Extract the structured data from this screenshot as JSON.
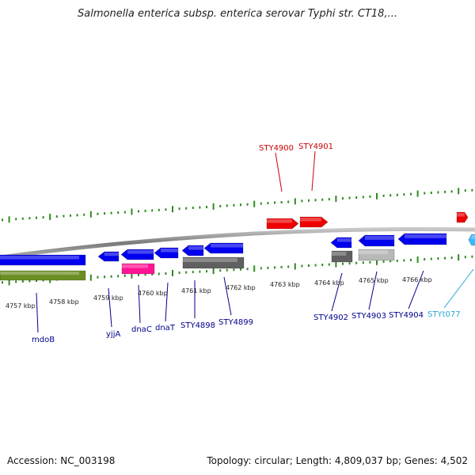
{
  "title": "Salmonella enterica subsp. enterica serovar Typhi str. CT18,...",
  "footer": {
    "accession": "Accession: NC_003198",
    "summary": "Topology: circular; Length: 4,809,037 bp; Genes: 4,502"
  },
  "colors": {
    "backbone": "#8a8a8a",
    "tick": "#2e8b1f",
    "plus_label": "#cc0000",
    "minus_label": "#00008b",
    "rna_label": "#29a9d6"
  },
  "kbp_ticks": [
    {
      "label": "4757 kbp"
    },
    {
      "label": "4758 kbp"
    },
    {
      "label": "4759 kbp"
    },
    {
      "label": "4760 kbp"
    },
    {
      "label": "4761 kbp"
    },
    {
      "label": "4762 kbp"
    },
    {
      "label": "4763 kbp"
    },
    {
      "label": "4764 kbp"
    },
    {
      "label": "4765 kbp"
    },
    {
      "label": "4766 kbp"
    }
  ],
  "plus_labels": [
    {
      "text": "STY4900",
      "color": "#cc0000"
    },
    {
      "text": "STY4901",
      "color": "#cc0000"
    }
  ],
  "minus_labels": [
    {
      "text": "mdoB",
      "color": "#00008b"
    },
    {
      "text": "yjjA",
      "color": "#00008b"
    },
    {
      "text": "dnaC",
      "color": "#00008b"
    },
    {
      "text": "dnaT",
      "color": "#00008b"
    },
    {
      "text": "STY4898",
      "color": "#00008b"
    },
    {
      "text": "STY4899",
      "color": "#00008b"
    },
    {
      "text": "STY4902",
      "color": "#00008b"
    },
    {
      "text": "STY4903",
      "color": "#00008b"
    },
    {
      "text": "STY4904",
      "color": "#00008b"
    },
    {
      "text": "STYt077",
      "color": "#29a9d6"
    }
  ],
  "features": [
    {
      "name": "gene-mdoB",
      "color": "#0000ee",
      "strand": "minus"
    },
    {
      "name": "cds-mdoB",
      "color": "#6b8e23",
      "strand": "minus"
    },
    {
      "name": "gene-yjjA",
      "color": "#0000ee",
      "strand": "minus"
    },
    {
      "name": "gene-dnaC",
      "color": "#0000ee",
      "strand": "minus"
    },
    {
      "name": "cds-dnaC",
      "color": "#ff1493",
      "strand": "minus"
    },
    {
      "name": "gene-dnaT",
      "color": "#0000ee",
      "strand": "minus"
    },
    {
      "name": "gene-STY4898",
      "color": "#0000ee",
      "strand": "minus"
    },
    {
      "name": "gene-STY4899",
      "color": "#0000ee",
      "strand": "minus"
    },
    {
      "name": "cds-STY4898-4899",
      "color": "#606060",
      "strand": "minus"
    },
    {
      "name": "gene-STY4900",
      "color": "#ee0000",
      "strand": "plus"
    },
    {
      "name": "gene-STY4901",
      "color": "#ee0000",
      "strand": "plus"
    },
    {
      "name": "gene-STY4902",
      "color": "#0000ee",
      "strand": "minus"
    },
    {
      "name": "cds-STY4902",
      "color": "#606060",
      "strand": "minus"
    },
    {
      "name": "gene-STY4903",
      "color": "#0000ee",
      "strand": "minus"
    },
    {
      "name": "cds-STY4903",
      "color": "#b8b8b8",
      "strand": "minus"
    },
    {
      "name": "gene-STY4904",
      "color": "#0000ee",
      "strand": "minus"
    },
    {
      "name": "gene-next-plus",
      "color": "#ee0000",
      "strand": "plus"
    },
    {
      "name": "gene-STYt077",
      "color": "#33bbff",
      "strand": "minus"
    }
  ]
}
